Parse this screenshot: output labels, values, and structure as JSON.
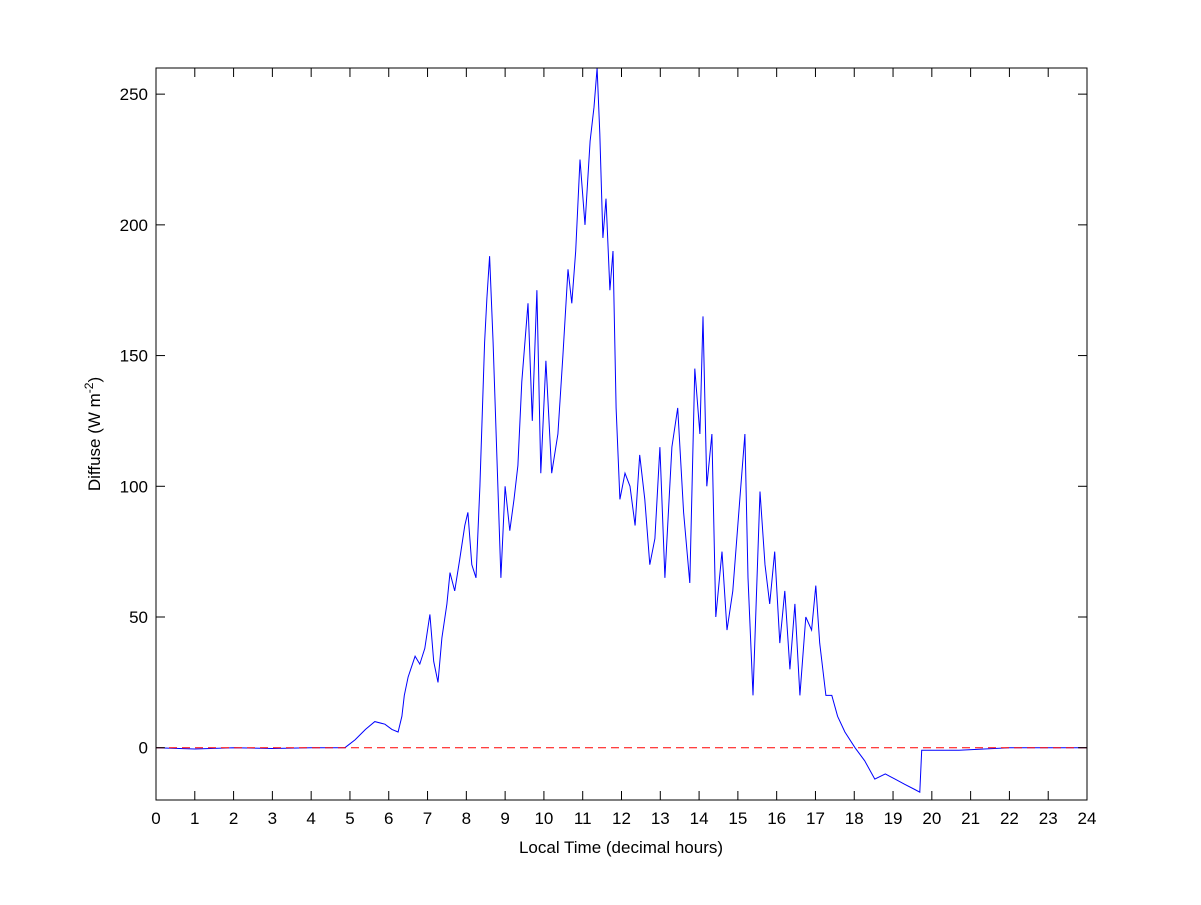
{
  "chart_data": {
    "type": "line",
    "title": "",
    "xlabel": "Local Time (decimal hours)",
    "ylabel_main": "Diffuse (W m",
    "ylabel_sup": "-2",
    "ylabel_close": ")",
    "xlim": [
      0,
      24
    ],
    "ylim": [
      -20,
      260
    ],
    "xticks": [
      0,
      1,
      2,
      3,
      4,
      5,
      6,
      7,
      8,
      9,
      10,
      11,
      12,
      13,
      14,
      15,
      16,
      17,
      18,
      19,
      20,
      21,
      22,
      23,
      24
    ],
    "yticks": [
      0,
      50,
      100,
      150,
      200,
      250
    ],
    "grid": false,
    "series": [
      {
        "color": "#0000ff",
        "style": "solid",
        "points": [
          [
            0,
            0
          ],
          [
            1,
            -0.5
          ],
          [
            2,
            0
          ],
          [
            3,
            -0.3
          ],
          [
            4,
            0
          ],
          [
            4.87,
            0
          ],
          [
            5.13,
            3
          ],
          [
            5.4,
            7
          ],
          [
            5.64,
            10
          ],
          [
            5.9,
            9
          ],
          [
            6.08,
            7
          ],
          [
            6.24,
            6
          ],
          [
            6.34,
            12
          ],
          [
            6.4,
            20
          ],
          [
            6.5,
            27
          ],
          [
            6.68,
            35
          ],
          [
            6.8,
            32
          ],
          [
            6.93,
            38
          ],
          [
            7.06,
            51
          ],
          [
            7.16,
            33
          ],
          [
            7.27,
            25
          ],
          [
            7.37,
            42
          ],
          [
            7.5,
            55
          ],
          [
            7.58,
            67
          ],
          [
            7.7,
            60
          ],
          [
            7.83,
            72
          ],
          [
            7.96,
            85
          ],
          [
            8.04,
            90
          ],
          [
            8.14,
            70
          ],
          [
            8.25,
            65
          ],
          [
            8.35,
            100
          ],
          [
            8.47,
            155
          ],
          [
            8.53,
            172
          ],
          [
            8.6,
            188
          ],
          [
            8.69,
            155
          ],
          [
            8.79,
            110
          ],
          [
            8.89,
            65
          ],
          [
            9.0,
            100
          ],
          [
            9.12,
            83
          ],
          [
            9.23,
            95
          ],
          [
            9.33,
            108
          ],
          [
            9.43,
            140
          ],
          [
            9.59,
            170
          ],
          [
            9.7,
            125
          ],
          [
            9.82,
            175
          ],
          [
            9.92,
            105
          ],
          [
            10.05,
            148
          ],
          [
            10.2,
            105
          ],
          [
            10.36,
            120
          ],
          [
            10.49,
            150
          ],
          [
            10.62,
            183
          ],
          [
            10.72,
            170
          ],
          [
            10.82,
            190
          ],
          [
            10.93,
            225
          ],
          [
            11.06,
            200
          ],
          [
            11.19,
            232
          ],
          [
            11.29,
            245
          ],
          [
            11.37,
            260
          ],
          [
            11.44,
            235
          ],
          [
            11.52,
            195
          ],
          [
            11.6,
            210
          ],
          [
            11.7,
            175
          ],
          [
            11.78,
            190
          ],
          [
            11.86,
            130
          ],
          [
            11.96,
            95
          ],
          [
            12.09,
            105
          ],
          [
            12.22,
            100
          ],
          [
            12.35,
            85
          ],
          [
            12.47,
            112
          ],
          [
            12.6,
            95
          ],
          [
            12.73,
            70
          ],
          [
            12.86,
            80
          ],
          [
            12.99,
            115
          ],
          [
            13.12,
            65
          ],
          [
            13.3,
            115
          ],
          [
            13.45,
            130
          ],
          [
            13.6,
            90
          ],
          [
            13.76,
            63
          ],
          [
            13.89,
            145
          ],
          [
            14.02,
            120
          ],
          [
            14.1,
            165
          ],
          [
            14.2,
            100
          ],
          [
            14.33,
            120
          ],
          [
            14.43,
            50
          ],
          [
            14.59,
            75
          ],
          [
            14.72,
            45
          ],
          [
            14.87,
            60
          ],
          [
            15.05,
            95
          ],
          [
            15.18,
            120
          ],
          [
            15.26,
            65
          ],
          [
            15.39,
            20
          ],
          [
            15.57,
            98
          ],
          [
            15.7,
            70
          ],
          [
            15.82,
            55
          ],
          [
            15.95,
            75
          ],
          [
            16.08,
            40
          ],
          [
            16.21,
            60
          ],
          [
            16.34,
            30
          ],
          [
            16.47,
            55
          ],
          [
            16.6,
            20
          ],
          [
            16.75,
            50
          ],
          [
            16.9,
            45
          ],
          [
            17.01,
            62
          ],
          [
            17.11,
            40
          ],
          [
            17.27,
            20
          ],
          [
            17.42,
            20
          ],
          [
            17.57,
            12
          ],
          [
            17.76,
            6
          ],
          [
            18.02,
            0
          ],
          [
            18.27,
            -5
          ],
          [
            18.53,
            -12
          ],
          [
            18.8,
            -10
          ],
          [
            19.05,
            -12
          ],
          [
            19.3,
            -14
          ],
          [
            19.56,
            -16
          ],
          [
            19.69,
            -17
          ],
          [
            19.74,
            -1
          ],
          [
            20.08,
            -1
          ],
          [
            20.7,
            -1
          ],
          [
            22,
            0
          ],
          [
            24,
            0
          ]
        ]
      },
      {
        "color": "#ff0000",
        "style": "dashed",
        "points": [
          [
            0,
            0
          ],
          [
            24,
            0
          ]
        ]
      }
    ]
  }
}
